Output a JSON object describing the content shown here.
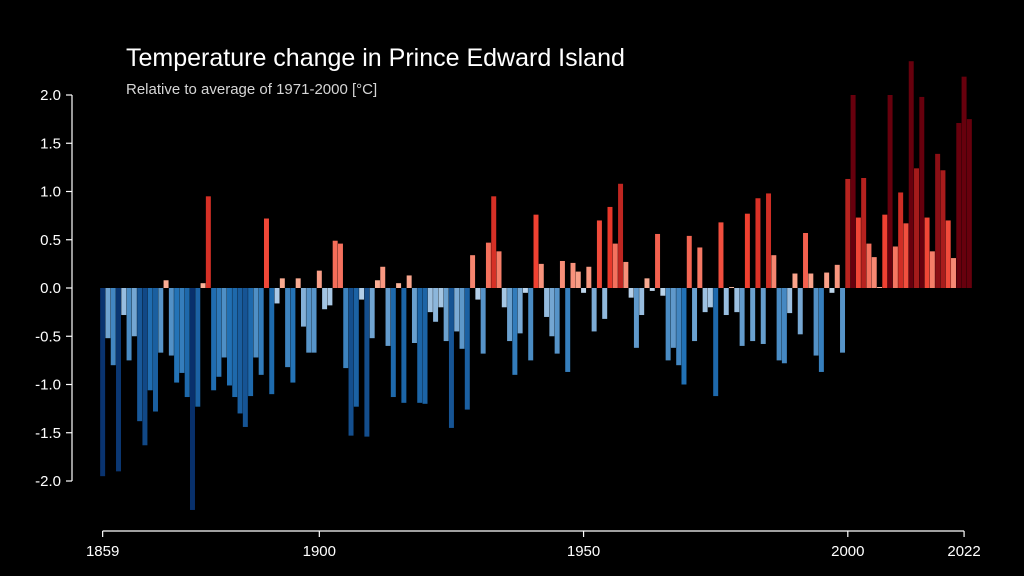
{
  "chart_data": {
    "type": "bar",
    "title": "Temperature change in Prince Edward Island",
    "subtitle": "Relative to average of 1971-2000  [°C]",
    "xlabel": "",
    "ylabel": "",
    "x_start": 1859,
    "x_end": 2022,
    "ylim": [
      -2.3,
      2.3
    ],
    "y_ticks": [
      "2.0",
      "1.5",
      "1.0",
      "0.5",
      "0.0",
      "-0.5",
      "-1.0",
      "-1.5",
      "-2.0"
    ],
    "y_tick_values": [
      2.0,
      1.5,
      1.0,
      0.5,
      0.0,
      -0.5,
      -1.0,
      -1.5,
      -2.0
    ],
    "x_ticks": [
      "1859",
      "1900",
      "1950",
      "2000",
      "2022"
    ],
    "x_tick_values": [
      1859,
      1900,
      1950,
      2000,
      2022
    ],
    "grid": false,
    "colors": {
      "background": "#000000",
      "axis": "#ffffff",
      "cold_max": "#08306b",
      "cold_mid": "#2171b5",
      "cold_min": "#c6dbef",
      "warm_min": "#fcbba1",
      "warm_mid": "#ef3b2c",
      "warm_max": "#67000d"
    },
    "values": [
      -1.95,
      -0.52,
      -0.8,
      -1.9,
      -0.28,
      -0.75,
      -0.5,
      -1.38,
      -1.63,
      -1.06,
      -1.28,
      -0.67,
      0.08,
      -0.7,
      -0.98,
      -0.88,
      -1.13,
      -2.3,
      -1.23,
      0.05,
      0.95,
      -1.06,
      -0.92,
      -0.72,
      -1.01,
      -1.13,
      -1.3,
      -1.44,
      -1.12,
      -0.72,
      -0.9,
      0.72,
      -1.1,
      -0.16,
      0.1,
      -0.82,
      -0.98,
      0.1,
      -0.4,
      -0.67,
      -0.67,
      0.18,
      -0.22,
      -0.18,
      0.49,
      0.46,
      -0.83,
      -1.53,
      -1.23,
      -0.12,
      -1.54,
      -0.52,
      0.08,
      0.22,
      -0.6,
      -1.13,
      0.05,
      -1.19,
      0.13,
      -0.57,
      -1.19,
      -1.2,
      -0.25,
      -0.35,
      -0.2,
      -0.55,
      -1.45,
      -0.45,
      -0.63,
      -1.26,
      0.34,
      -0.12,
      -0.68,
      0.47,
      0.95,
      0.38,
      -0.2,
      -0.55,
      -0.9,
      -0.47,
      -0.05,
      -0.75,
      0.76,
      0.25,
      -0.3,
      -0.5,
      -0.68,
      0.28,
      -0.87,
      0.26,
      0.17,
      -0.05,
      0.22,
      -0.45,
      0.7,
      -0.32,
      0.84,
      0.46,
      1.08,
      0.27,
      -0.1,
      -0.62,
      -0.28,
      0.1,
      -0.03,
      0.56,
      -0.08,
      -0.75,
      -0.62,
      -0.8,
      -1.0,
      0.54,
      -0.55,
      0.42,
      -0.25,
      -0.2,
      -1.12,
      0.68,
      -0.28,
      0.01,
      -0.25,
      -0.6,
      0.77,
      -0.55,
      0.93,
      -0.58,
      0.98,
      0.34,
      -0.75,
      -0.78,
      -0.26,
      0.15,
      -0.48,
      0.57,
      0.15,
      -0.7,
      -0.87,
      0.16,
      -0.05,
      0.24,
      -0.67,
      1.13,
      2.0,
      0.73,
      1.14,
      0.46,
      0.32,
      0.01,
      0.76,
      2.0,
      0.43,
      0.99,
      0.67,
      2.35,
      1.24,
      1.98,
      0.73,
      0.38,
      1.39,
      1.22,
      0.7,
      0.31,
      1.71,
      2.19,
      1.75
    ]
  }
}
